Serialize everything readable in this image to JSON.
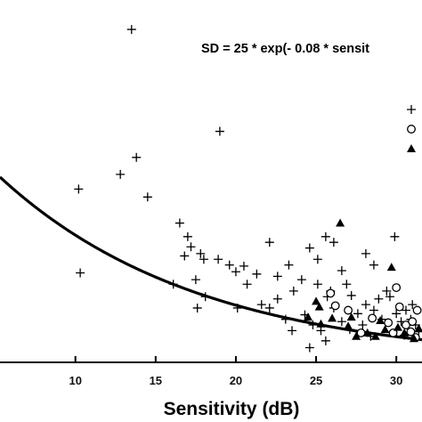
{
  "chart_data": {
    "type": "scatter",
    "title": "",
    "annotation": "SD = 25 * exp(- 0.08 * sensit",
    "xlabel": "Sensitivity (dB)",
    "ylabel": "",
    "xlim": [
      5.3,
      31.6
    ],
    "ylim": [
      0,
      32
    ],
    "x_ticks": [
      10,
      15,
      20,
      25,
      30
    ],
    "x_tick_labels": [
      "10",
      "15",
      "20",
      "25",
      "30"
    ],
    "grid": false,
    "legend": "top-right, labels cut off at image edge",
    "colors": {
      "axis": "#000000",
      "marker": "#000000",
      "curve": "#000000"
    },
    "fit_curve": {
      "formula": "25 * exp(-0.08 * x)",
      "a": 25,
      "b": -0.08
    },
    "series": [
      {
        "marker": "plus",
        "points": [
          [
            13.5,
            29.4
          ],
          [
            19.0,
            20.4
          ],
          [
            13.8,
            18.1
          ],
          [
            10.2,
            15.3
          ],
          [
            12.8,
            16.6
          ],
          [
            14.5,
            14.6
          ],
          [
            10.3,
            7.9
          ],
          [
            16.5,
            12.3
          ],
          [
            17.0,
            11.1
          ],
          [
            17.2,
            10.2
          ],
          [
            17.8,
            9.6
          ],
          [
            18.0,
            9.1
          ],
          [
            16.8,
            9.4
          ],
          [
            16.1,
            6.9
          ],
          [
            17.5,
            7.3
          ],
          [
            18.1,
            5.8
          ],
          [
            17.6,
            4.8
          ],
          [
            18.9,
            9.1
          ],
          [
            19.6,
            8.6
          ],
          [
            20.0,
            8.0
          ],
          [
            20.5,
            8.5
          ],
          [
            21.3,
            7.8
          ],
          [
            20.7,
            6.9
          ],
          [
            20.1,
            4.8
          ],
          [
            21.6,
            5.1
          ],
          [
            22.1,
            10.6
          ],
          [
            22.6,
            7.6
          ],
          [
            23.3,
            8.6
          ],
          [
            23.6,
            6.3
          ],
          [
            24.1,
            7.3
          ],
          [
            22.6,
            5.6
          ],
          [
            22.1,
            4.8
          ],
          [
            23.1,
            3.8
          ],
          [
            23.5,
            2.8
          ],
          [
            24.6,
            10.1
          ],
          [
            25.1,
            9.1
          ],
          [
            25.6,
            11.1
          ],
          [
            25.1,
            6.9
          ],
          [
            25.7,
            5.8
          ],
          [
            26.1,
            4.8
          ],
          [
            26.6,
            8.1
          ],
          [
            26.9,
            6.9
          ],
          [
            27.2,
            5.9
          ],
          [
            26.1,
            10.6
          ],
          [
            24.3,
            4.2
          ],
          [
            24.8,
            3.3
          ],
          [
            25.3,
            2.8
          ],
          [
            25.6,
            1.9
          ],
          [
            26.6,
            3.6
          ],
          [
            27.1,
            2.9
          ],
          [
            27.6,
            4.3
          ],
          [
            28.1,
            5.1
          ],
          [
            27.9,
            3.3
          ],
          [
            28.6,
            4.6
          ],
          [
            29.1,
            3.8
          ],
          [
            28.4,
            2.3
          ],
          [
            28.9,
            5.6
          ],
          [
            29.6,
            5.8
          ],
          [
            30.0,
            4.3
          ],
          [
            30.3,
            3.6
          ],
          [
            30.6,
            4.6
          ],
          [
            30.9,
            3.8
          ],
          [
            31.2,
            3.3
          ],
          [
            31.4,
            2.7
          ],
          [
            29.9,
            11.1
          ],
          [
            28.1,
            9.6
          ],
          [
            28.6,
            8.6
          ],
          [
            31.0,
            5.1
          ],
          [
            29.4,
            6.3
          ],
          [
            30.5,
            2.4
          ],
          [
            24.6,
            1.3
          ],
          [
            25.9,
            6.3
          ]
        ]
      },
      {
        "marker": "circle",
        "points": [
          [
            25.9,
            6.1
          ],
          [
            26.2,
            5.0
          ],
          [
            27.0,
            4.6
          ],
          [
            28.5,
            3.9
          ],
          [
            29.5,
            3.5
          ],
          [
            30.0,
            6.6
          ],
          [
            30.2,
            4.9
          ],
          [
            30.6,
            3.3
          ],
          [
            31.0,
            3.6
          ],
          [
            31.3,
            4.6
          ],
          [
            29.8,
            2.6
          ],
          [
            31.2,
            2.2
          ],
          [
            27.8,
            2.6
          ],
          [
            30.9,
            2.7
          ]
        ]
      },
      {
        "marker": "triangle",
        "points": [
          [
            26.5,
            12.3
          ],
          [
            29.7,
            8.4
          ],
          [
            24.5,
            4.0
          ],
          [
            25.0,
            5.4
          ],
          [
            25.3,
            3.4
          ],
          [
            26.0,
            3.9
          ],
          [
            27.0,
            3.2
          ],
          [
            27.5,
            2.3
          ],
          [
            28.2,
            2.6
          ],
          [
            29.0,
            3.7
          ],
          [
            29.3,
            2.9
          ],
          [
            30.5,
            2.6
          ],
          [
            31.4,
            3.0
          ],
          [
            28.7,
            2.3
          ],
          [
            30.1,
            3.1
          ],
          [
            25.2,
            4.9
          ],
          [
            27.2,
            4.0
          ],
          [
            31.1,
            2.1
          ]
        ]
      }
    ]
  }
}
